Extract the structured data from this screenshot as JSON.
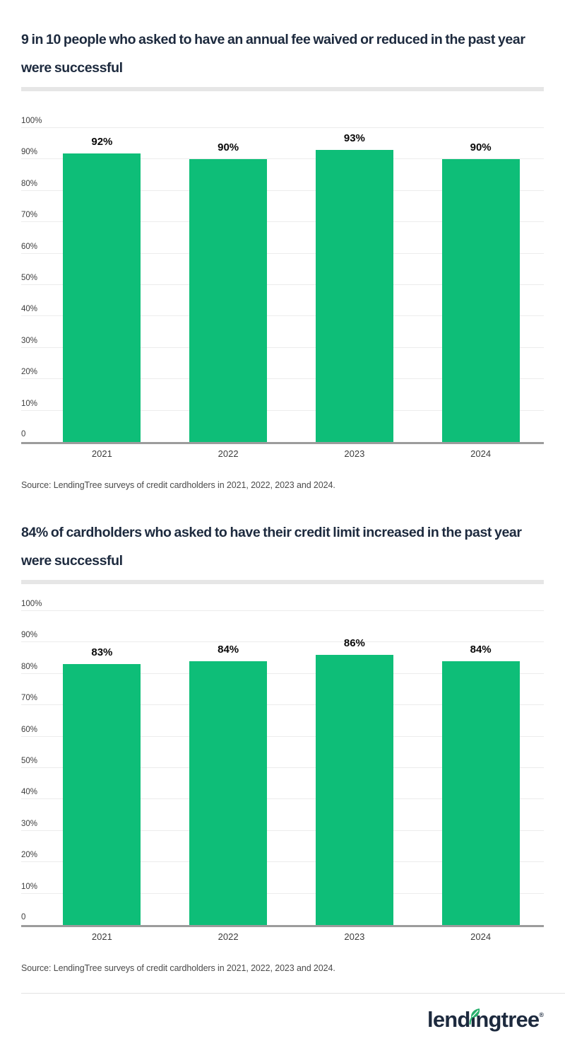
{
  "source_note": "Source: LendingTree surveys of credit cardholders in 2021, 2022, 2023 and 2024.",
  "chart_data": [
    {
      "type": "bar",
      "title": "9 in 10 people who asked to have an annual fee waived or reduced in the past year were successful",
      "categories": [
        "2021",
        "2022",
        "2023",
        "2024"
      ],
      "values": [
        92,
        90,
        93,
        90
      ],
      "data_labels": [
        "92%",
        "90%",
        "93%",
        "90%"
      ],
      "xlabel": "",
      "ylabel": "",
      "ylim": [
        0,
        100
      ],
      "yticks": [
        100,
        90,
        80,
        70,
        60,
        50,
        40,
        30,
        20,
        10
      ],
      "ytick_labels": [
        "100%",
        "90%",
        "80%",
        "70%",
        "60%",
        "50%",
        "40%",
        "30%",
        "20%",
        "10%"
      ],
      "zero_label": "0",
      "grid": true,
      "legend": "none",
      "bar_color": "#0ebe78"
    },
    {
      "type": "bar",
      "title": "84% of cardholders who asked to have their credit limit increased in the past year were successful",
      "categories": [
        "2021",
        "2022",
        "2023",
        "2024"
      ],
      "values": [
        83,
        84,
        86,
        84
      ],
      "data_labels": [
        "83%",
        "84%",
        "86%",
        "84%"
      ],
      "xlabel": "",
      "ylabel": "",
      "ylim": [
        0,
        100
      ],
      "yticks": [
        100,
        90,
        80,
        70,
        60,
        50,
        40,
        30,
        20,
        10
      ],
      "ytick_labels": [
        "100%",
        "90%",
        "80%",
        "70%",
        "60%",
        "50%",
        "40%",
        "30%",
        "20%",
        "10%"
      ],
      "zero_label": "0",
      "grid": true,
      "legend": "none",
      "bar_color": "#0ebe78"
    }
  ],
  "footer": {
    "logo": {
      "name": "lendingtree",
      "pre": "lend",
      "dotless_i": "ı",
      "post": "ngtree",
      "registered": "®"
    }
  },
  "colors": {
    "bar_green": "#0ebe78",
    "title_navy": "#1d2a3e",
    "leaf_green": "#26b06c",
    "gridline": "#ececec",
    "baseline": "#9c9c9c",
    "tick_text": "#3d3d3d",
    "source_text": "#4b4b4b",
    "divider": "#e6e6e6",
    "footer_line": "#e2e2e2"
  }
}
